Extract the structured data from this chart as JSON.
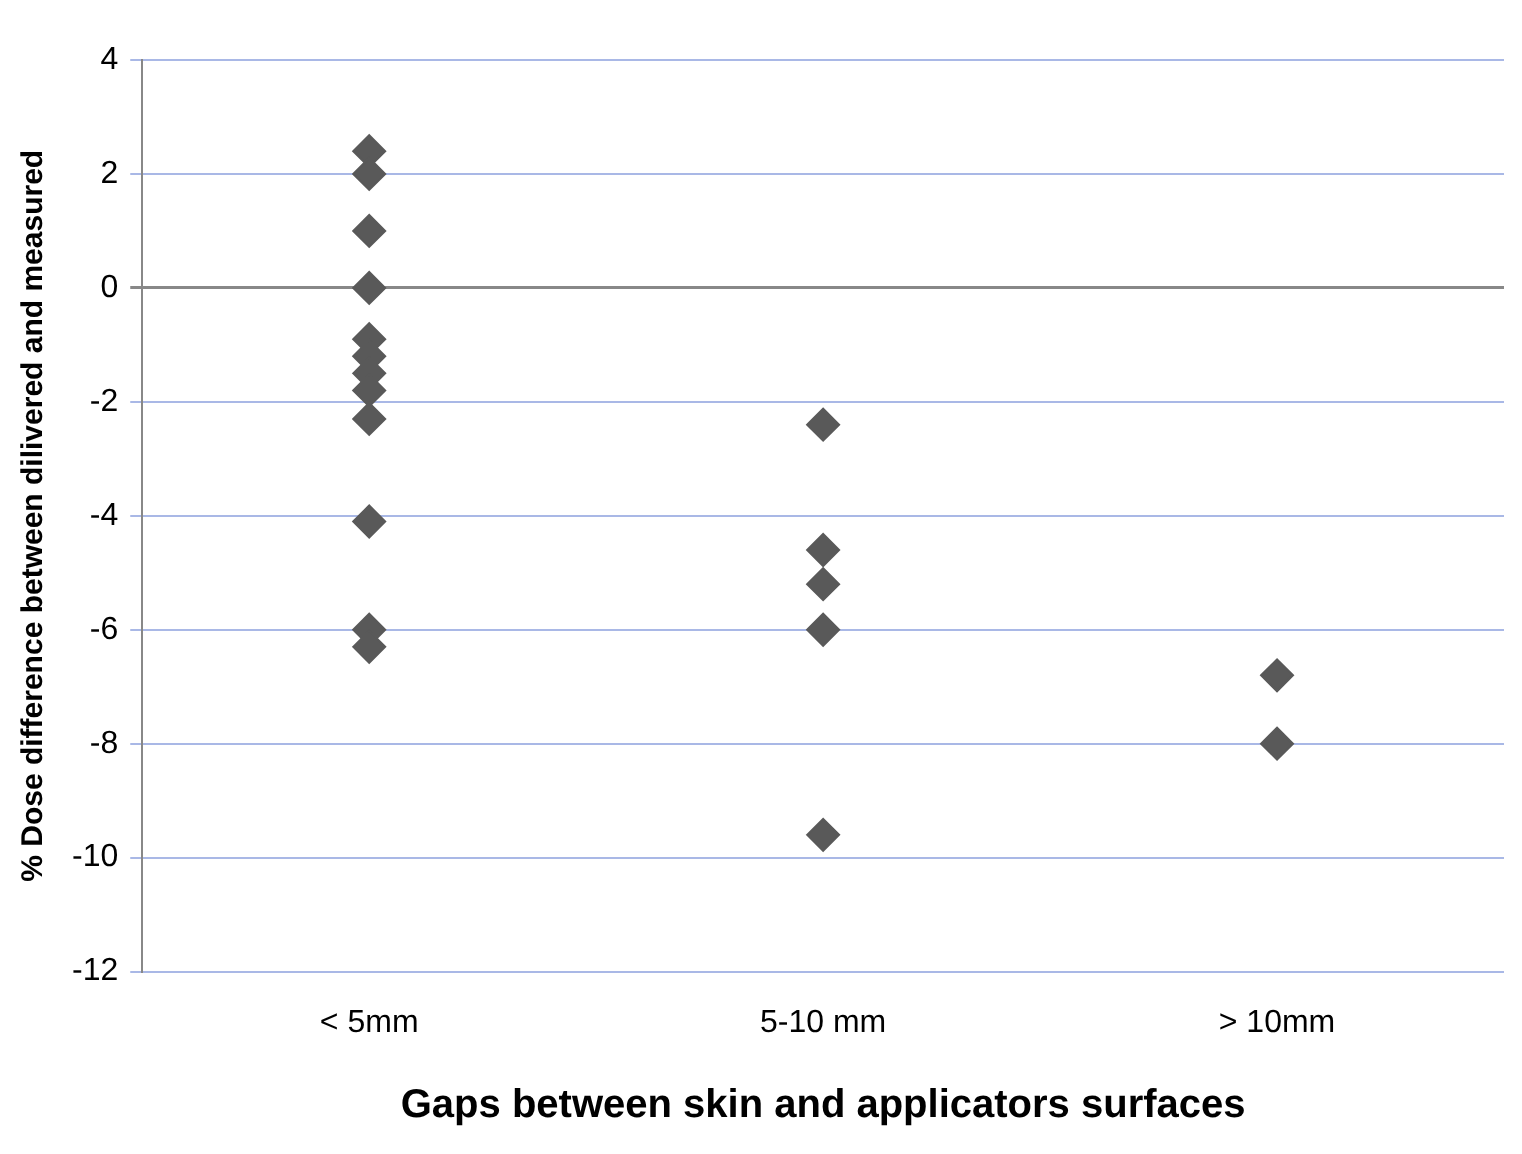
{
  "chart_data": {
    "type": "scatter",
    "xlabel": "Gaps between skin and applicators surfaces",
    "ylabel": "% Dose difference between dilivered and measured",
    "categories": [
      "< 5mm",
      "5-10 mm",
      "> 10mm"
    ],
    "series": [
      {
        "color": "#595959",
        "x": [
          "< 5mm",
          "< 5mm",
          "< 5mm",
          "< 5mm",
          "< 5mm",
          "< 5mm",
          "< 5mm",
          "< 5mm",
          "< 5mm",
          "< 5mm",
          "< 5mm",
          "< 5mm",
          "5-10 mm",
          "5-10 mm",
          "5-10 mm",
          "5-10 mm",
          "5-10 mm",
          "> 10mm",
          "> 10mm"
        ],
        "values": [
          2.4,
          2,
          1,
          0,
          -0.9,
          -1.2,
          -1.5,
          -1.8,
          -2.3,
          -4.1,
          -6,
          -6.3,
          -2.4,
          -4.6,
          -5.2,
          -6,
          -9.6,
          -6.8,
          -8
        ]
      }
    ],
    "ylim": [
      -12,
      4
    ],
    "yticks": [
      -12,
      -10,
      -8,
      -6,
      -4,
      -2,
      0,
      2,
      4
    ],
    "grid": "y",
    "legend": false,
    "marker": "diamond"
  }
}
